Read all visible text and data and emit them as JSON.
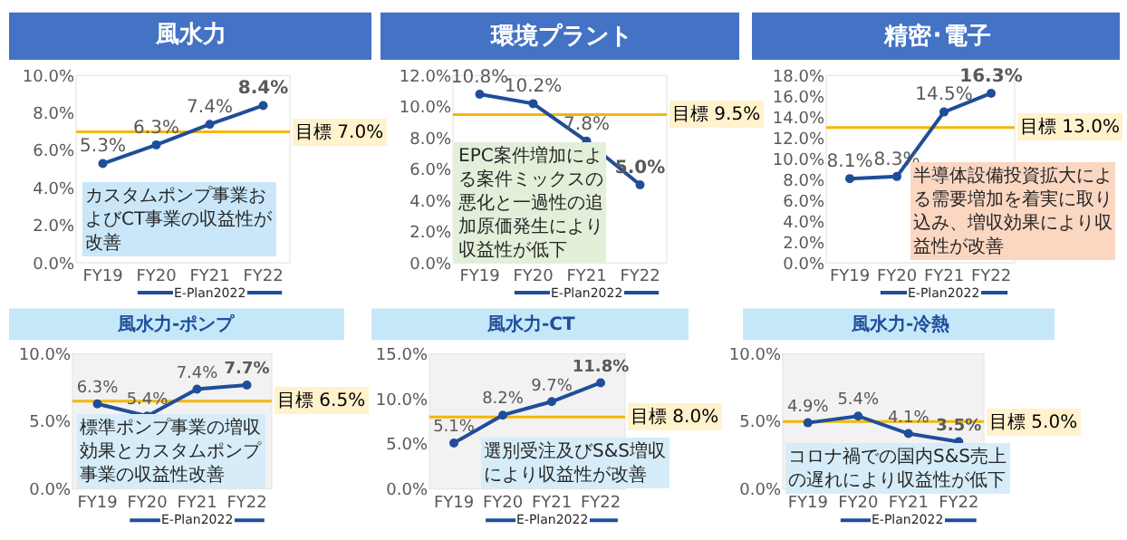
{
  "chart_data": [
    {
      "type": "line",
      "title": "風水力",
      "categories": [
        "FY19",
        "FY20",
        "FY21",
        "FY22"
      ],
      "values": [
        5.3,
        6.3,
        7.4,
        8.4
      ],
      "value_labels": [
        "5.3%",
        "6.3%",
        "7.4%",
        "8.4%"
      ],
      "color": "#1f4e99",
      "marker": "circle",
      "ylim": [
        0,
        10
      ],
      "yticks": [
        {
          "value": 0,
          "label": "0.0%"
        },
        {
          "value": 2,
          "label": "2.0%"
        },
        {
          "value": 4,
          "label": "4.0%"
        },
        {
          "value": 6,
          "label": "6.0%"
        },
        {
          "value": 8,
          "label": "8.0%"
        },
        {
          "value": 10,
          "label": "10.0%"
        }
      ],
      "ref_lines": [
        {
          "axis": "y",
          "value": 7.0,
          "label": "目標 7.0%",
          "color": "#f2b705"
        }
      ],
      "annotations": [
        "カスタムポンプ事業およびCT事業の収益性が改善",
        "E-Plan2022"
      ]
    },
    {
      "type": "line",
      "title": "環境プラント",
      "categories": [
        "FY19",
        "FY20",
        "FY21",
        "FY22"
      ],
      "values": [
        10.8,
        10.2,
        7.8,
        5.0
      ],
      "value_labels": [
        "10.8%",
        "10.2%",
        "7.8%",
        "5.0%"
      ],
      "color": "#1f4e99",
      "marker": "circle",
      "ylim": [
        0,
        12
      ],
      "yticks": [
        {
          "value": 0,
          "label": "0.0%"
        },
        {
          "value": 2,
          "label": "2.0%"
        },
        {
          "value": 4,
          "label": "4.0%"
        },
        {
          "value": 6,
          "label": "6.0%"
        },
        {
          "value": 8,
          "label": "8.0%"
        },
        {
          "value": 10,
          "label": "10.0%"
        },
        {
          "value": 12,
          "label": "12.0%"
        }
      ],
      "ref_lines": [
        {
          "axis": "y",
          "value": 9.5,
          "label": "目標 9.5%",
          "color": "#f2b705"
        }
      ],
      "annotations": [
        "EPC案件増加による案件ミックスの悪化と一過性の追加原価発生により収益性が低下",
        "E-Plan2022"
      ]
    },
    {
      "type": "line",
      "title": "精密･電子",
      "categories": [
        "FY19",
        "FY20",
        "FY21",
        "FY22"
      ],
      "values": [
        8.1,
        8.3,
        14.5,
        16.3
      ],
      "value_labels": [
        "8.1%",
        "8.3%",
        "14.5%",
        "16.3%"
      ],
      "color": "#1f4e99",
      "marker": "circle",
      "ylim": [
        0,
        18
      ],
      "yticks": [
        {
          "value": 0,
          "label": "0.0%"
        },
        {
          "value": 2,
          "label": "2.0%"
        },
        {
          "value": 4,
          "label": "4.0%"
        },
        {
          "value": 6,
          "label": "6.0%"
        },
        {
          "value": 8,
          "label": "8.0%"
        },
        {
          "value": 10,
          "label": "10.0%"
        },
        {
          "value": 12,
          "label": "12.0%"
        },
        {
          "value": 14,
          "label": "14.0%"
        },
        {
          "value": 16,
          "label": "16.0%"
        },
        {
          "value": 18,
          "label": "18.0%"
        }
      ],
      "ref_lines": [
        {
          "axis": "y",
          "value": 13.0,
          "label": "目標 13.0%",
          "color": "#f2b705"
        }
      ],
      "annotations": [
        "半導体設備投資拡大による需要増加を着実に取り込み、増収効果により収益性が改善",
        "E-Plan2022"
      ]
    },
    {
      "type": "line",
      "title": "風水力-ポンプ",
      "categories": [
        "FY19",
        "FY20",
        "FY21",
        "FY22"
      ],
      "values": [
        6.3,
        5.4,
        7.4,
        7.7
      ],
      "value_labels": [
        "6.3%",
        "5.4%",
        "7.4%",
        "7.7%"
      ],
      "color": "#1f4e99",
      "marker": "circle",
      "ylim": [
        0,
        10
      ],
      "yticks": [
        {
          "value": 0,
          "label": "0.0%"
        },
        {
          "value": 5,
          "label": "5.0%"
        },
        {
          "value": 10,
          "label": "10.0%"
        }
      ],
      "ref_lines": [
        {
          "axis": "y",
          "value": 6.5,
          "label": "目標 6.5%",
          "color": "#f2b705"
        }
      ],
      "annotations": [
        "標準ポンプ事業の増収効果とカスタムポンプ事業の収益性改善",
        "E-Plan2022"
      ]
    },
    {
      "type": "line",
      "title": "風水力-CT",
      "categories": [
        "FY19",
        "FY20",
        "FY21",
        "FY22"
      ],
      "values": [
        5.1,
        8.2,
        9.7,
        11.8
      ],
      "value_labels": [
        "5.1%",
        "8.2%",
        "9.7%",
        "11.8%"
      ],
      "color": "#1f4e99",
      "marker": "circle",
      "ylim": [
        0,
        15
      ],
      "yticks": [
        {
          "value": 0,
          "label": "0.0%"
        },
        {
          "value": 5,
          "label": "5.0%"
        },
        {
          "value": 10,
          "label": "10.0%"
        },
        {
          "value": 15,
          "label": "15.0%"
        }
      ],
      "ref_lines": [
        {
          "axis": "y",
          "value": 8.0,
          "label": "目標 8.0%",
          "color": "#f2b705"
        }
      ],
      "annotations": [
        "選別受注及びS&S増収により収益性が改善",
        "E-Plan2022"
      ]
    },
    {
      "type": "line",
      "title": "風水力-冷熱",
      "categories": [
        "FY19",
        "FY20",
        "FY21",
        "FY22"
      ],
      "values": [
        4.9,
        5.4,
        4.1,
        3.5
      ],
      "value_labels": [
        "4.9%",
        "5.4%",
        "4.1%",
        "3.5%"
      ],
      "color": "#1f4e99",
      "marker": "circle",
      "ylim": [
        0,
        10
      ],
      "yticks": [
        {
          "value": 0,
          "label": "0.0%"
        },
        {
          "value": 5,
          "label": "5.0%"
        },
        {
          "value": 10,
          "label": "10.0%"
        }
      ],
      "ref_lines": [
        {
          "axis": "y",
          "value": 5.0,
          "label": "目標 5.0%",
          "color": "#f2b705"
        }
      ],
      "annotations": [
        "コロナ禍での国内S&S売上の遅れにより収益性が低下",
        "E-Plan2022"
      ]
    }
  ]
}
